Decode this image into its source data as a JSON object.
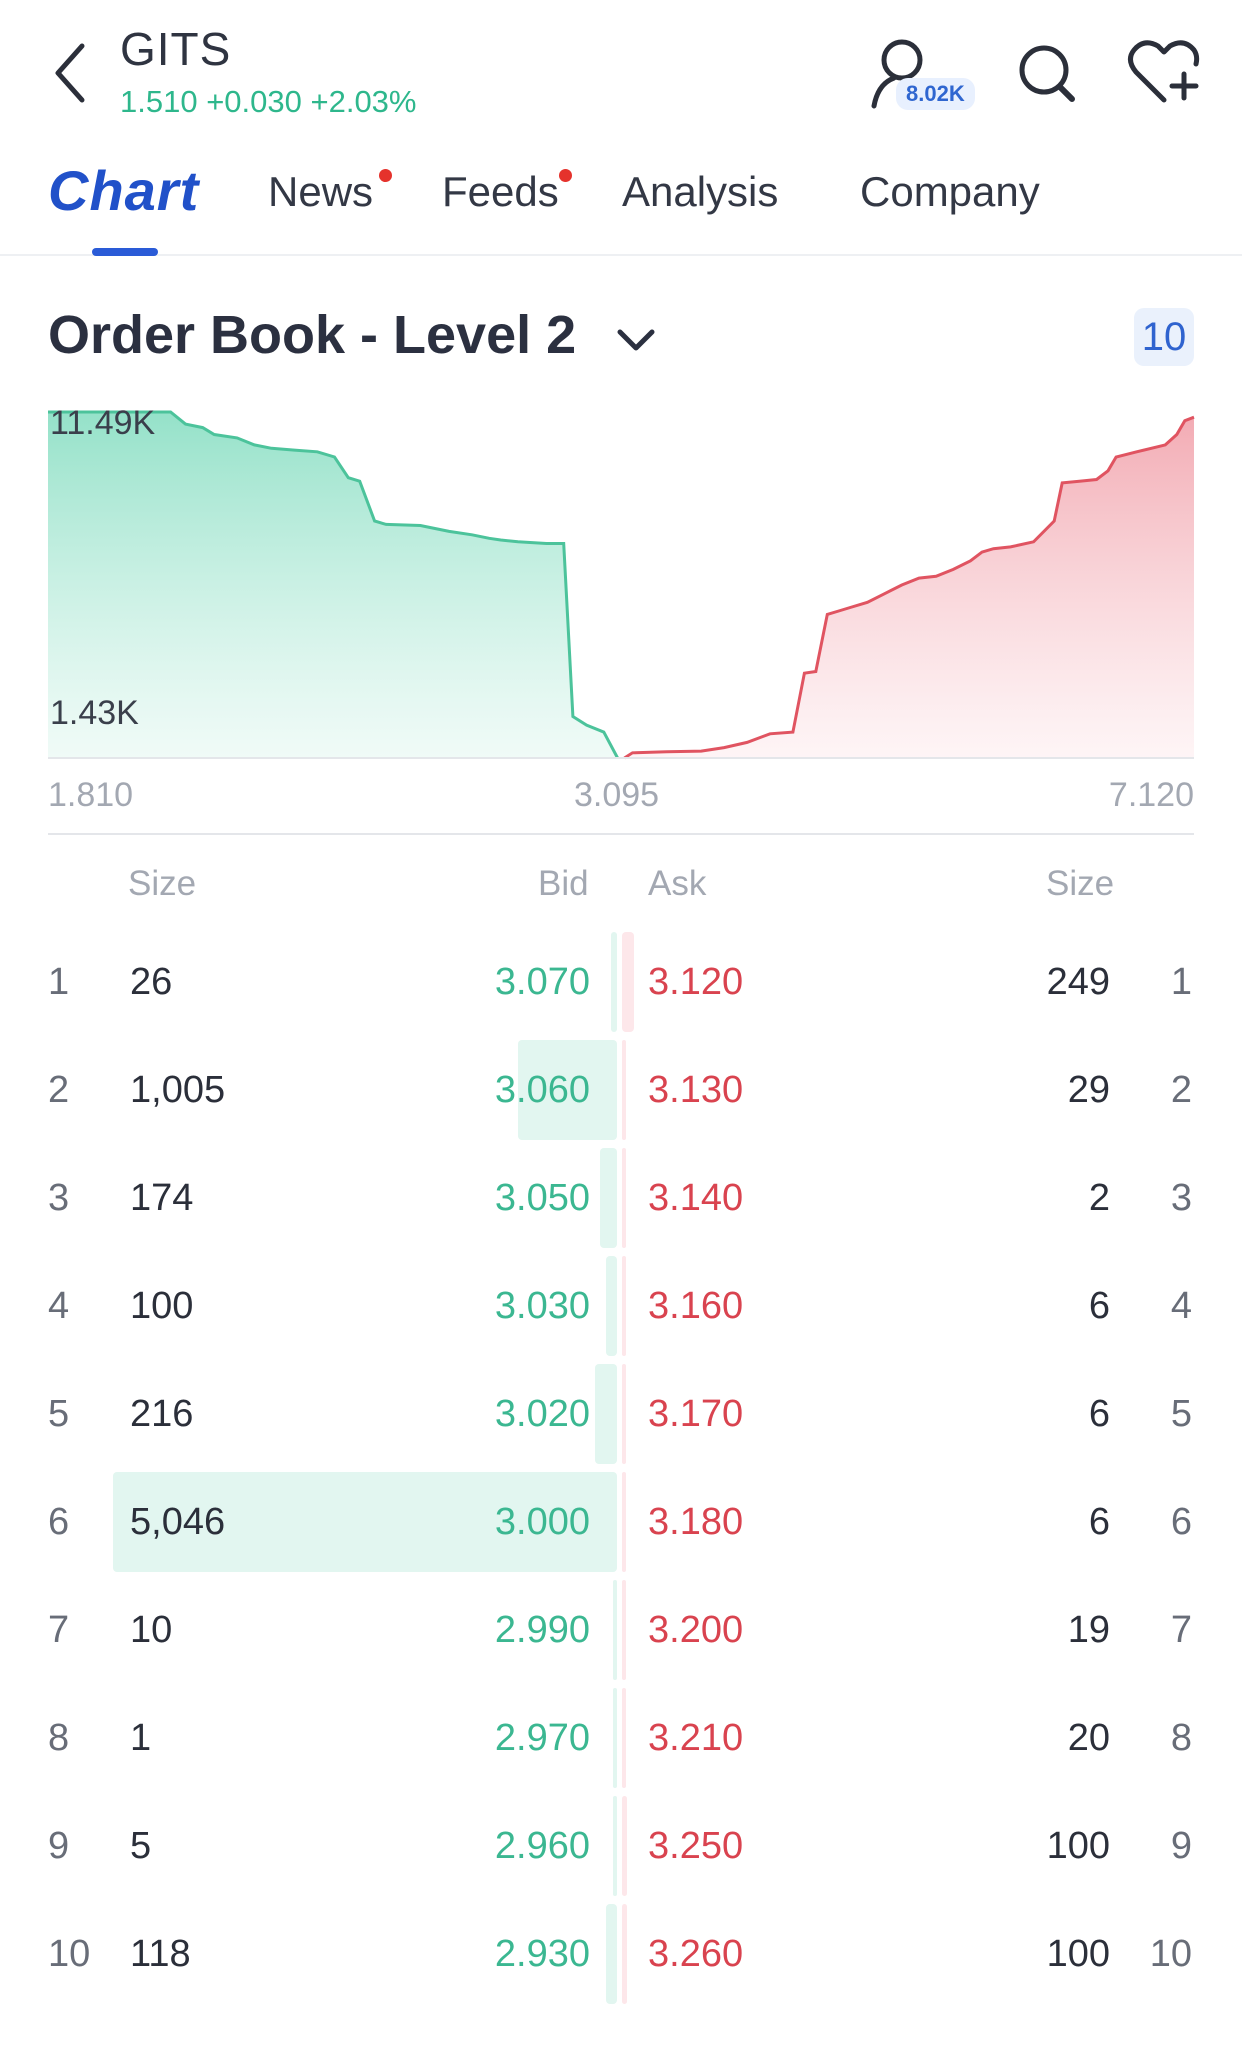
{
  "header": {
    "ticker": "GITS",
    "quote": "1.510 +0.030 +2.03%",
    "followers": "8.02K",
    "icons": [
      "back-arrow-icon",
      "user-icon",
      "search-icon",
      "heart-plus-icon"
    ]
  },
  "tabs": [
    {
      "label": "Chart",
      "active": true
    },
    {
      "label": "News",
      "dot": true
    },
    {
      "label": "Feeds",
      "dot": true
    },
    {
      "label": "Analysis"
    },
    {
      "label": "Company"
    }
  ],
  "order_book": {
    "title": "Order Book - Level 2",
    "levels": "10",
    "columns": {
      "bid_size": "Size",
      "bid": "Bid",
      "ask": "Ask",
      "ask_size": "Size"
    },
    "rows": [
      {
        "level": "1",
        "bid_size": "26",
        "bid": "3.070",
        "ask": "3.120",
        "ask_size": "249"
      },
      {
        "level": "2",
        "bid_size": "1,005",
        "bid": "3.060",
        "ask": "3.130",
        "ask_size": "29"
      },
      {
        "level": "3",
        "bid_size": "174",
        "bid": "3.050",
        "ask": "3.140",
        "ask_size": "2"
      },
      {
        "level": "4",
        "bid_size": "100",
        "bid": "3.030",
        "ask": "3.160",
        "ask_size": "6"
      },
      {
        "level": "5",
        "bid_size": "216",
        "bid": "3.020",
        "ask": "3.170",
        "ask_size": "6"
      },
      {
        "level": "6",
        "bid_size": "5,046",
        "bid": "3.000",
        "ask": "3.180",
        "ask_size": "6"
      },
      {
        "level": "7",
        "bid_size": "10",
        "bid": "2.990",
        "ask": "3.200",
        "ask_size": "19"
      },
      {
        "level": "8",
        "bid_size": "1",
        "bid": "2.970",
        "ask": "3.210",
        "ask_size": "20"
      },
      {
        "level": "9",
        "bid_size": "5",
        "bid": "2.960",
        "ask": "3.250",
        "ask_size": "100"
      },
      {
        "level": "10",
        "bid_size": "118",
        "bid": "2.930",
        "ask": "3.260",
        "ask_size": "100"
      }
    ]
  },
  "depth_chart": {
    "y_max_label": "11.49K",
    "y_min_label": "1.43K",
    "x_labels": [
      "1.810",
      "3.095",
      "7.120"
    ],
    "colors": {
      "bid": "#4cc39b",
      "ask": "#e05461"
    },
    "bid_curve": [
      [
        0.0,
        1.0
      ],
      [
        0.107,
        1.0
      ],
      [
        0.12,
        0.965
      ],
      [
        0.135,
        0.955
      ],
      [
        0.145,
        0.935
      ],
      [
        0.165,
        0.925
      ],
      [
        0.18,
        0.905
      ],
      [
        0.195,
        0.895
      ],
      [
        0.215,
        0.89
      ],
      [
        0.235,
        0.885
      ],
      [
        0.25,
        0.87
      ],
      [
        0.262,
        0.81
      ],
      [
        0.272,
        0.8
      ],
      [
        0.285,
        0.685
      ],
      [
        0.295,
        0.675
      ],
      [
        0.325,
        0.672
      ],
      [
        0.335,
        0.665
      ],
      [
        0.35,
        0.655
      ],
      [
        0.37,
        0.645
      ],
      [
        0.385,
        0.635
      ],
      [
        0.395,
        0.63
      ],
      [
        0.41,
        0.625
      ],
      [
        0.435,
        0.62
      ],
      [
        0.45,
        0.62
      ],
      [
        0.458,
        0.12
      ],
      [
        0.47,
        0.095
      ],
      [
        0.485,
        0.075
      ],
      [
        0.497,
        0.0
      ]
    ],
    "ask_curve": [
      [
        0.503,
        0.0
      ],
      [
        0.51,
        0.015
      ],
      [
        0.54,
        0.018
      ],
      [
        0.57,
        0.02
      ],
      [
        0.59,
        0.03
      ],
      [
        0.61,
        0.045
      ],
      [
        0.63,
        0.07
      ],
      [
        0.65,
        0.075
      ],
      [
        0.66,
        0.245
      ],
      [
        0.67,
        0.25
      ],
      [
        0.68,
        0.415
      ],
      [
        0.69,
        0.425
      ],
      [
        0.7,
        0.435
      ],
      [
        0.715,
        0.45
      ],
      [
        0.73,
        0.475
      ],
      [
        0.745,
        0.5
      ],
      [
        0.76,
        0.52
      ],
      [
        0.775,
        0.525
      ],
      [
        0.79,
        0.545
      ],
      [
        0.805,
        0.57
      ],
      [
        0.815,
        0.595
      ],
      [
        0.825,
        0.605
      ],
      [
        0.84,
        0.61
      ],
      [
        0.86,
        0.625
      ],
      [
        0.878,
        0.685
      ],
      [
        0.885,
        0.795
      ],
      [
        0.9,
        0.8
      ],
      [
        0.915,
        0.805
      ],
      [
        0.925,
        0.83
      ],
      [
        0.932,
        0.87
      ],
      [
        0.95,
        0.885
      ],
      [
        0.975,
        0.905
      ],
      [
        0.985,
        0.935
      ],
      [
        0.992,
        0.975
      ],
      [
        1.0,
        0.985
      ]
    ]
  },
  "depth_bars": {
    "bid": [
      0.005,
      0.088,
      0.015,
      0.01,
      0.02,
      0.45,
      0.002,
      0.001,
      0.002,
      0.01
    ],
    "ask": [
      0.021,
      0.003,
      0.001,
      0.002,
      0.002,
      0.002,
      0.003,
      0.004,
      0.009,
      0.009
    ]
  }
}
